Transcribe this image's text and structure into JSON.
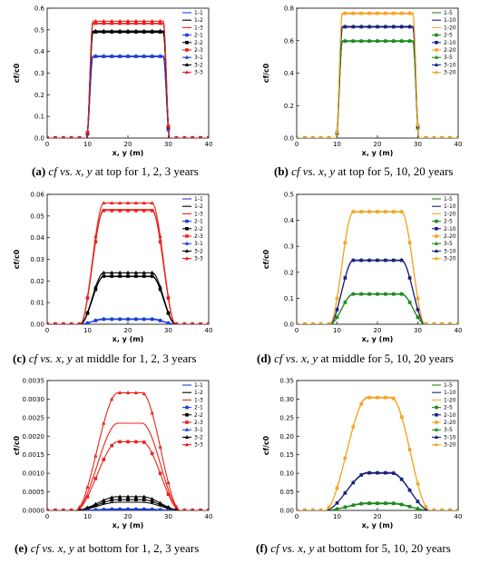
{
  "xlabel": "x, y (m)",
  "ylabel": "cf/c0",
  "chart_data": [
    {
      "id": "a",
      "type": "line",
      "x_range": [
        0,
        40
      ],
      "xticks": [
        "0",
        "10",
        "20",
        "30",
        "40"
      ],
      "ylim": [
        0,
        0.6
      ],
      "yticks": [
        "0.0",
        "0.1",
        "0.2",
        "0.3",
        "0.4",
        "0.5",
        "0.6"
      ],
      "profile": "plateau",
      "series": [
        {
          "name": "1-1",
          "color": "#1f3fd8",
          "marker": "none",
          "plateau": 0.375
        },
        {
          "name": "1-2",
          "color": "#000000",
          "marker": "none",
          "plateau": 0.488
        },
        {
          "name": "1-3",
          "color": "#e8231b",
          "marker": "none",
          "plateau": 0.528
        },
        {
          "name": "2-1",
          "color": "#1f3fd8",
          "marker": "square",
          "plateau": 0.377
        },
        {
          "name": "2-2",
          "color": "#000000",
          "marker": "square",
          "plateau": 0.49
        },
        {
          "name": "2-3",
          "color": "#e8231b",
          "marker": "square",
          "plateau": 0.53
        },
        {
          "name": "3-1",
          "color": "#1f3fd8",
          "marker": "triangle",
          "plateau": 0.379
        },
        {
          "name": "3-2",
          "color": "#000000",
          "marker": "triangle",
          "plateau": 0.495
        },
        {
          "name": "3-3",
          "color": "#e8231b",
          "marker": "triangle",
          "plateau": 0.54
        }
      ]
    },
    {
      "id": "b",
      "type": "line",
      "x_range": [
        0,
        40
      ],
      "xticks": [
        "0",
        "10",
        "20",
        "30",
        "40"
      ],
      "ylim": [
        0,
        0.8
      ],
      "yticks": [
        "0.0",
        "0.2",
        "0.4",
        "0.6",
        "0.8"
      ],
      "profile": "plateau",
      "series": [
        {
          "name": "1-5",
          "color": "#1e8a1e",
          "marker": "none",
          "plateau": 0.595
        },
        {
          "name": "1-10",
          "color": "#1a237e",
          "marker": "none",
          "plateau": 0.683
        },
        {
          "name": "1-20",
          "color": "#f5a524",
          "marker": "none",
          "plateau": 0.765
        },
        {
          "name": "2-5",
          "color": "#1e8a1e",
          "marker": "square",
          "plateau": 0.597
        },
        {
          "name": "2-10",
          "color": "#1a237e",
          "marker": "square",
          "plateau": 0.685
        },
        {
          "name": "2-20",
          "color": "#f5a524",
          "marker": "square",
          "plateau": 0.768
        },
        {
          "name": "3-5",
          "color": "#1e8a1e",
          "marker": "triangle",
          "plateau": 0.6
        },
        {
          "name": "3-10",
          "color": "#1a237e",
          "marker": "triangle",
          "plateau": 0.688
        },
        {
          "name": "3-20",
          "color": "#f5a524",
          "marker": "triangle",
          "plateau": 0.77
        }
      ]
    },
    {
      "id": "c",
      "type": "line",
      "x_range": [
        0,
        40
      ],
      "xticks": [
        "0",
        "10",
        "20",
        "30",
        "40"
      ],
      "ylim": [
        0,
        0.06
      ],
      "yticks": [
        "0.00",
        "0.01",
        "0.02",
        "0.03",
        "0.04",
        "0.05",
        "0.06"
      ],
      "profile": "middle",
      "series": [
        {
          "name": "1-1",
          "color": "#1f3fd8",
          "marker": "none",
          "plateau": 0.0022
        },
        {
          "name": "1-2",
          "color": "#000000",
          "marker": "none",
          "plateau": 0.022
        },
        {
          "name": "1-3",
          "color": "#e8231b",
          "marker": "none",
          "plateau": 0.053
        },
        {
          "name": "2-1",
          "color": "#1f3fd8",
          "marker": "square",
          "plateau": 0.0023
        },
        {
          "name": "2-2",
          "color": "#000000",
          "marker": "square",
          "plateau": 0.0222
        },
        {
          "name": "2-3",
          "color": "#e8231b",
          "marker": "square",
          "plateau": 0.0525
        },
        {
          "name": "3-1",
          "color": "#1f3fd8",
          "marker": "triangle",
          "plateau": 0.0025
        },
        {
          "name": "3-2",
          "color": "#000000",
          "marker": "triangle",
          "plateau": 0.0238
        },
        {
          "name": "3-3",
          "color": "#e8231b",
          "marker": "triangle",
          "plateau": 0.056
        }
      ]
    },
    {
      "id": "d",
      "type": "line",
      "x_range": [
        0,
        40
      ],
      "xticks": [
        "0",
        "10",
        "20",
        "30",
        "40"
      ],
      "ylim": [
        0,
        0.5
      ],
      "yticks": [
        "0.0",
        "0.1",
        "0.2",
        "0.3",
        "0.4",
        "0.5"
      ],
      "profile": "middle",
      "series": [
        {
          "name": "1-5",
          "color": "#1e8a1e",
          "marker": "none",
          "plateau": 0.115
        },
        {
          "name": "1-10",
          "color": "#1a237e",
          "marker": "none",
          "plateau": 0.245
        },
        {
          "name": "1-20",
          "color": "#f5a524",
          "marker": "none",
          "plateau": 0.432
        },
        {
          "name": "2-5",
          "color": "#1e8a1e",
          "marker": "square",
          "plateau": 0.116
        },
        {
          "name": "2-10",
          "color": "#1a237e",
          "marker": "square",
          "plateau": 0.246
        },
        {
          "name": "2-20",
          "color": "#f5a524",
          "marker": "square",
          "plateau": 0.433
        },
        {
          "name": "3-5",
          "color": "#1e8a1e",
          "marker": "triangle",
          "plateau": 0.117
        },
        {
          "name": "3-10",
          "color": "#1a237e",
          "marker": "triangle",
          "plateau": 0.247
        },
        {
          "name": "3-20",
          "color": "#f5a524",
          "marker": "triangle",
          "plateau": 0.434
        }
      ]
    },
    {
      "id": "e",
      "type": "line",
      "x_range": [
        0,
        40
      ],
      "xticks": [
        "0",
        "10",
        "20",
        "30",
        "40"
      ],
      "ylim": [
        0,
        0.0035
      ],
      "yticks": [
        "0.0000",
        "0.0005",
        "0.0010",
        "0.0015",
        "0.0020",
        "0.0025",
        "0.0030",
        "0.0035"
      ],
      "profile": "bottom",
      "series": [
        {
          "name": "1-1",
          "color": "#1f3fd8",
          "marker": "none",
          "plateau": 2e-05
        },
        {
          "name": "1-2",
          "color": "#000000",
          "marker": "none",
          "plateau": 0.00022
        },
        {
          "name": "1-3",
          "color": "#e8231b",
          "marker": "none",
          "plateau": 0.00235
        },
        {
          "name": "2-1",
          "color": "#1f3fd8",
          "marker": "square",
          "plateau": 3e-05
        },
        {
          "name": "2-2",
          "color": "#000000",
          "marker": "square",
          "plateau": 0.00029
        },
        {
          "name": "2-3",
          "color": "#e8231b",
          "marker": "square",
          "plateau": 0.00185
        },
        {
          "name": "3-1",
          "color": "#1f3fd8",
          "marker": "triangle",
          "plateau": 4e-05
        },
        {
          "name": "3-2",
          "color": "#000000",
          "marker": "triangle",
          "plateau": 0.00037
        },
        {
          "name": "3-3",
          "color": "#e8231b",
          "marker": "triangle",
          "plateau": 0.00317
        }
      ]
    },
    {
      "id": "f",
      "type": "line",
      "x_range": [
        0,
        40
      ],
      "xticks": [
        "0",
        "10",
        "20",
        "30",
        "40"
      ],
      "ylim": [
        0,
        0.35
      ],
      "yticks": [
        "0.00",
        "0.05",
        "0.10",
        "0.15",
        "0.20",
        "0.25",
        "0.30",
        "0.35"
      ],
      "profile": "bottom",
      "series": [
        {
          "name": "1-5",
          "color": "#1e8a1e",
          "marker": "none",
          "plateau": 0.018
        },
        {
          "name": "1-10",
          "color": "#1a237e",
          "marker": "none",
          "plateau": 0.1
        },
        {
          "name": "1-20",
          "color": "#f5a524",
          "marker": "none",
          "plateau": 0.303
        },
        {
          "name": "2-5",
          "color": "#1e8a1e",
          "marker": "square",
          "plateau": 0.019
        },
        {
          "name": "2-10",
          "color": "#1a237e",
          "marker": "square",
          "plateau": 0.101
        },
        {
          "name": "2-20",
          "color": "#f5a524",
          "marker": "square",
          "plateau": 0.304
        },
        {
          "name": "3-5",
          "color": "#1e8a1e",
          "marker": "triangle",
          "plateau": 0.02
        },
        {
          "name": "3-10",
          "color": "#1a237e",
          "marker": "triangle",
          "plateau": 0.102
        },
        {
          "name": "3-20",
          "color": "#f5a524",
          "marker": "triangle",
          "plateau": 0.305
        }
      ]
    }
  ],
  "captions": [
    {
      "letter": "(a)",
      "math": "cf vs. x, y",
      "rest": " at top for 1, 2, 3 years"
    },
    {
      "letter": "(b)",
      "math": "cf vs. x, y",
      "rest": " at top for 5, 10, 20 years"
    },
    {
      "letter": "(c)",
      "math": "cf vs. x, y",
      "rest": " at middle for 1, 2, 3 years"
    },
    {
      "letter": "(d)",
      "math": "cf vs. x, y",
      "rest": " at middle for 5, 10, 20 years"
    },
    {
      "letter": "(e)",
      "math": "cf vs. x, y",
      "rest": " at bottom for 1, 2, 3 years"
    },
    {
      "letter": "(f)",
      "math": "cf vs. x, y",
      "rest": " at bottom for 5, 10, 20 years"
    }
  ]
}
